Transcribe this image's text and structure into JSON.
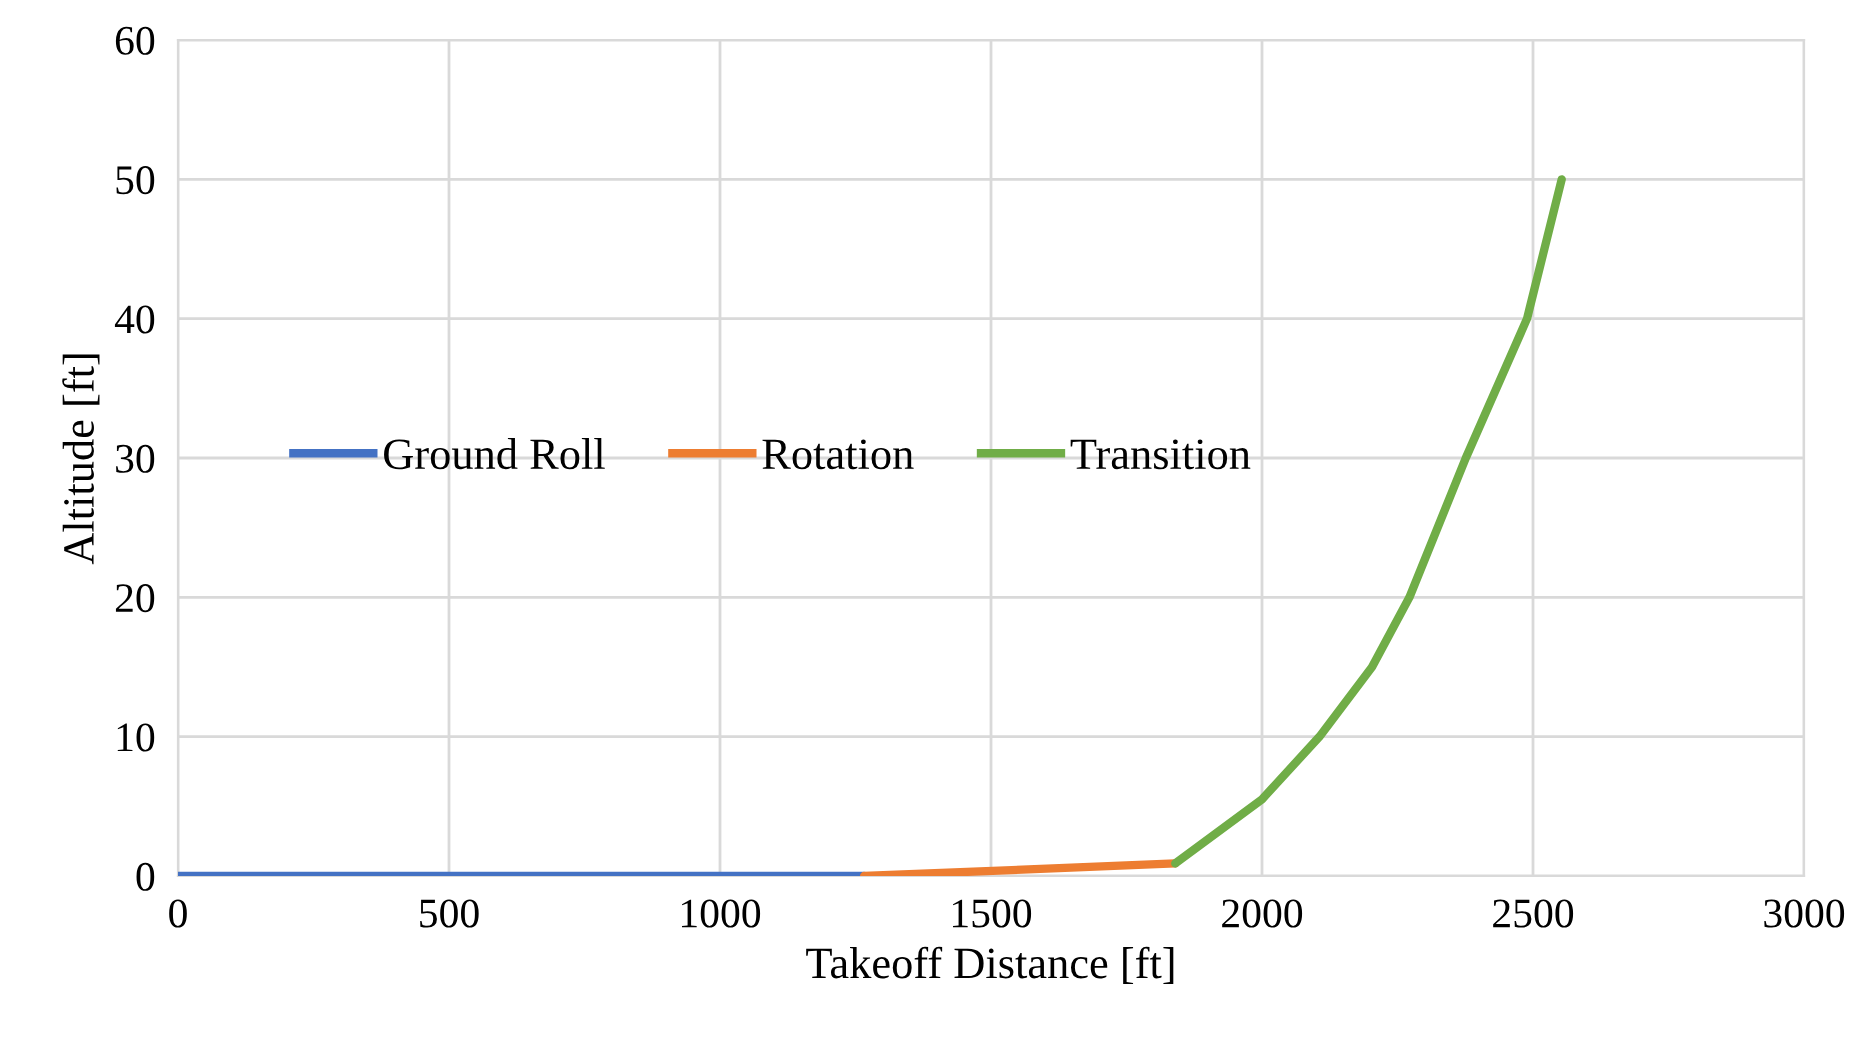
{
  "chart_data": {
    "type": "line",
    "xlabel": "Takeoff Distance [ft]",
    "ylabel": "Altitude [ft]",
    "xlim": [
      0,
      3000
    ],
    "xticks": [
      0,
      500,
      1000,
      1500,
      2000,
      2500,
      3000
    ],
    "ylim": [
      0,
      60
    ],
    "yticks": [
      0,
      10,
      20,
      30,
      40,
      50,
      60
    ],
    "grid": true,
    "legend": "center left",
    "marker": "none",
    "line_style": "solid",
    "series": [
      {
        "name": "Ground Roll",
        "color": "#4472c4",
        "x": [
          0,
          1266
        ],
        "values": [
          0,
          0
        ]
      },
      {
        "name": "Rotation",
        "color": "#ed7d31",
        "x": [
          1266,
          1840
        ],
        "values": [
          0,
          0.9
        ]
      },
      {
        "name": "Transition",
        "color": "#70ad47",
        "x": [
          1840,
          2000,
          2106,
          2203,
          2272,
          2376,
          2489,
          2553
        ],
        "values": [
          0.9,
          5.5,
          10,
          15,
          20,
          30,
          40,
          50
        ]
      }
    ]
  }
}
